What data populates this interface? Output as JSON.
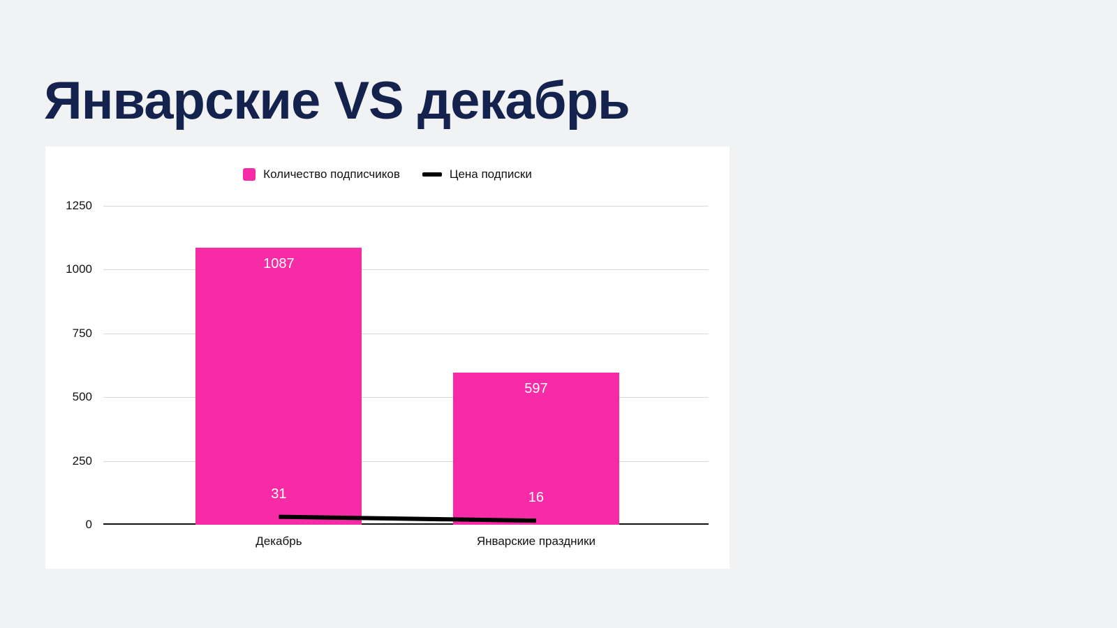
{
  "page": {
    "title": "Январские VS декабрь",
    "background": "#f1f2f4",
    "title_color": "#14234e"
  },
  "chart_data": {
    "type": "bar",
    "title": "",
    "categories": [
      "Декабрь",
      "Январские праздники"
    ],
    "series": [
      {
        "name": "Количество подписчиков",
        "type": "bar",
        "color": "#f72ba5",
        "values": [
          1087,
          597
        ]
      },
      {
        "name": "Цена подписки",
        "type": "line",
        "color": "#000000",
        "values": [
          31,
          16
        ]
      }
    ],
    "ylim": [
      0,
      1250
    ],
    "yticks": [
      0,
      250,
      500,
      750,
      1000,
      1250
    ],
    "grid": true,
    "legend_position": "top"
  }
}
